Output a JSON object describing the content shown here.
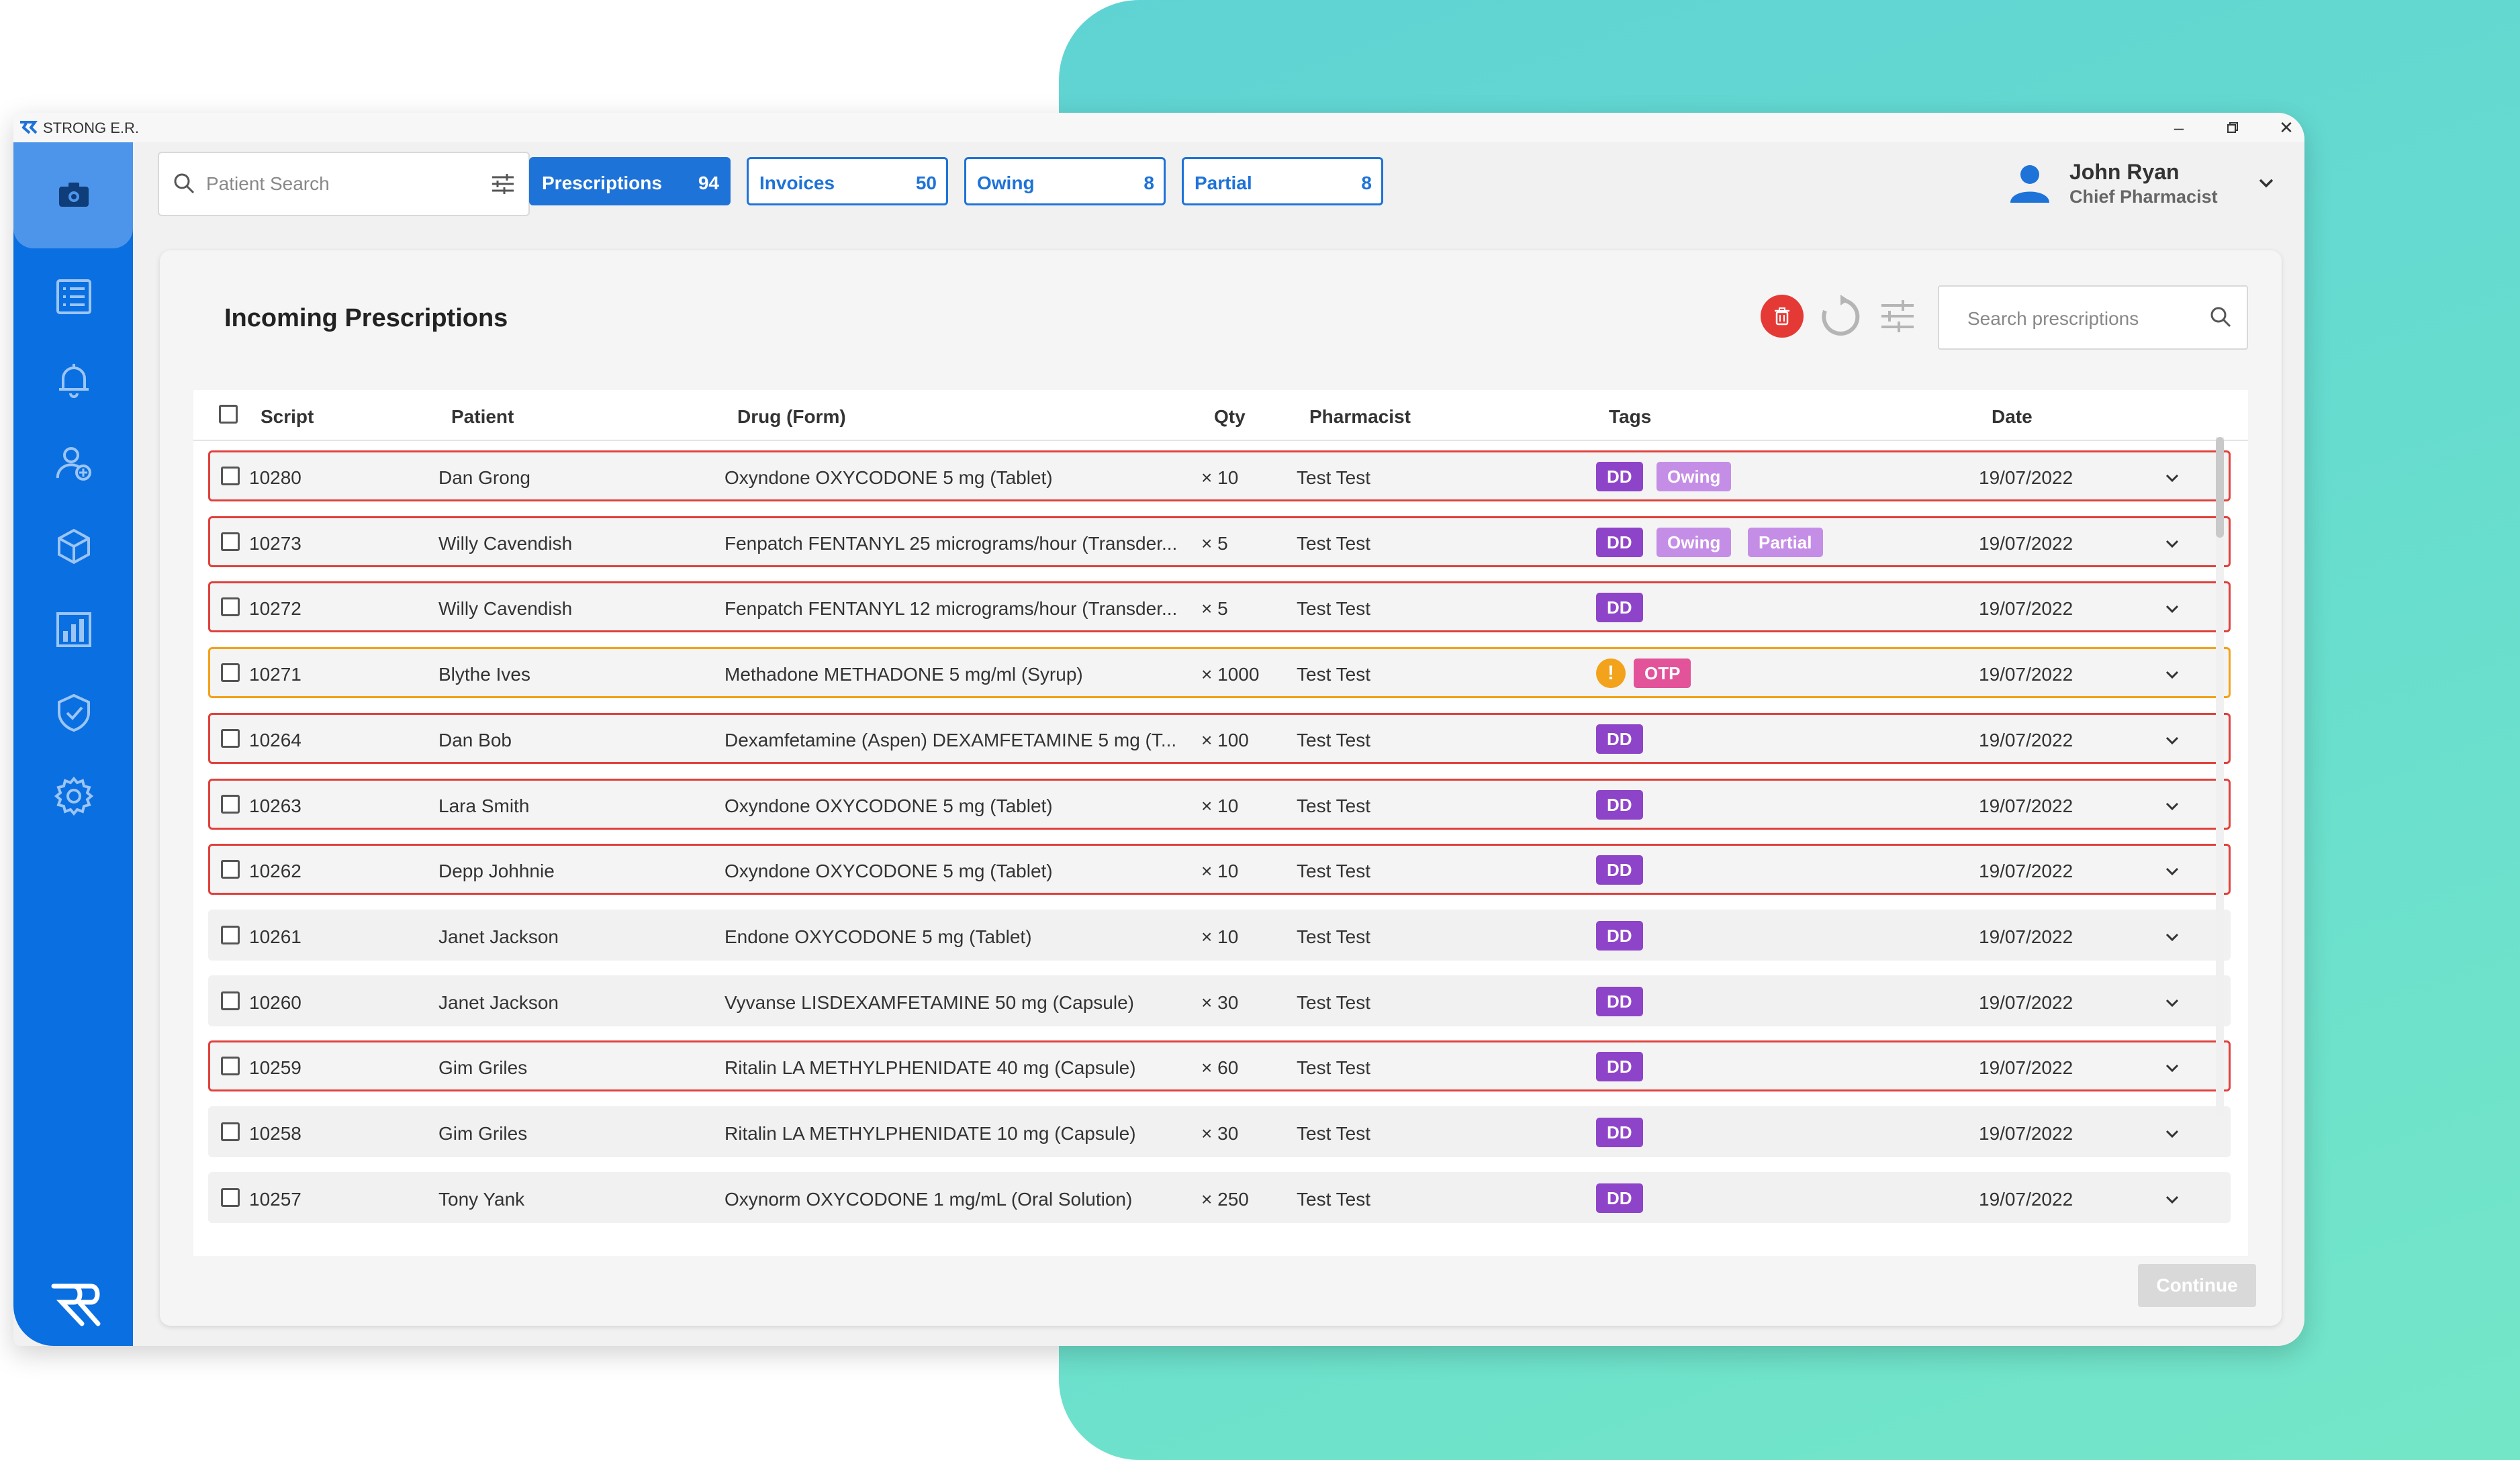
{
  "window": {
    "app_name": "STRONG E.R."
  },
  "sidebar": {
    "items": [
      {
        "icon": "camera-icon"
      },
      {
        "icon": "list-icon"
      },
      {
        "icon": "bell-icon"
      },
      {
        "icon": "user-add-icon"
      },
      {
        "icon": "box-icon"
      },
      {
        "icon": "bar-chart-icon"
      },
      {
        "icon": "shield-check-icon"
      },
      {
        "icon": "gear-icon"
      }
    ]
  },
  "topbar": {
    "search_placeholder": "Patient Search",
    "pills": [
      {
        "label": "Prescriptions",
        "count": "94",
        "active": true
      },
      {
        "label": "Invoices",
        "count": "50",
        "active": false
      },
      {
        "label": "Owing",
        "count": "8",
        "active": false
      },
      {
        "label": "Partial",
        "count": "8",
        "active": false
      }
    ],
    "user": {
      "name": "John Ryan",
      "role": "Chief Pharmacist"
    }
  },
  "panel": {
    "title": "Incoming Prescriptions",
    "search_placeholder": "Search prescriptions",
    "continue_label": "Continue"
  },
  "table": {
    "columns": [
      "Script",
      "Patient",
      "Drug (Form)",
      "Qty",
      "Pharmacist",
      "Tags",
      "Date"
    ],
    "rows": [
      {
        "script": "10280",
        "patient": "Dan Grong",
        "drug": "Oxyndone OXYCODONE 5 mg (Tablet)",
        "qty": "× 10",
        "pharmacist": "Test Test",
        "tags": [
          "DD",
          "Owing"
        ],
        "date": "19/07/2022",
        "highlight": "red"
      },
      {
        "script": "10273",
        "patient": "Willy Cavendish",
        "drug": "Fenpatch FENTANYL 25 micrograms/hour (Transder...",
        "qty": "× 5",
        "pharmacist": "Test Test",
        "tags": [
          "DD",
          "Owing",
          "Partial"
        ],
        "date": "19/07/2022",
        "highlight": "red"
      },
      {
        "script": "10272",
        "patient": "Willy Cavendish",
        "drug": "Fenpatch FENTANYL 12 micrograms/hour (Transder...",
        "qty": "× 5",
        "pharmacist": "Test Test",
        "tags": [
          "DD"
        ],
        "date": "19/07/2022",
        "highlight": "red"
      },
      {
        "script": "10271",
        "patient": "Blythe Ives",
        "drug": "Methadone METHADONE 5 mg/ml (Syrup)",
        "qty": "× 1000",
        "pharmacist": "Test Test",
        "tags": [
          "!",
          "OTP"
        ],
        "date": "19/07/2022",
        "highlight": "orange"
      },
      {
        "script": "10264",
        "patient": "Dan Bob",
        "drug": "Dexamfetamine (Aspen) DEXAMFETAMINE 5 mg (T...",
        "qty": "× 100",
        "pharmacist": "Test Test",
        "tags": [
          "DD"
        ],
        "date": "19/07/2022",
        "highlight": "red"
      },
      {
        "script": "10263",
        "patient": "Lara Smith",
        "drug": "Oxyndone OXYCODONE 5 mg (Tablet)",
        "qty": "× 10",
        "pharmacist": "Test Test",
        "tags": [
          "DD"
        ],
        "date": "19/07/2022",
        "highlight": "red"
      },
      {
        "script": "10262",
        "patient": "Depp Johhnie",
        "drug": "Oxyndone OXYCODONE 5 mg (Tablet)",
        "qty": "× 10",
        "pharmacist": "Test Test",
        "tags": [
          "DD"
        ],
        "date": "19/07/2022",
        "highlight": "red"
      },
      {
        "script": "10261",
        "patient": "Janet Jackson",
        "drug": "Endone OXYCODONE 5 mg (Tablet)",
        "qty": "× 10",
        "pharmacist": "Test Test",
        "tags": [
          "DD"
        ],
        "date": "19/07/2022",
        "highlight": "none"
      },
      {
        "script": "10260",
        "patient": "Janet Jackson",
        "drug": "Vyvanse LISDEXAMFETAMINE 50 mg (Capsule)",
        "qty": "× 30",
        "pharmacist": "Test Test",
        "tags": [
          "DD"
        ],
        "date": "19/07/2022",
        "highlight": "none"
      },
      {
        "script": "10259",
        "patient": "Gim Griles",
        "drug": "Ritalin LA METHYLPHENIDATE 40 mg (Capsule)",
        "qty": "× 60",
        "pharmacist": "Test Test",
        "tags": [
          "DD"
        ],
        "date": "19/07/2022",
        "highlight": "red"
      },
      {
        "script": "10258",
        "patient": "Gim Griles",
        "drug": "Ritalin LA METHYLPHENIDATE 10 mg (Capsule)",
        "qty": "× 30",
        "pharmacist": "Test Test",
        "tags": [
          "DD"
        ],
        "date": "19/07/2022",
        "highlight": "none"
      },
      {
        "script": "10257",
        "patient": "Tony Yank",
        "drug": "Oxynorm OXYCODONE 1 mg/mL (Oral Solution)",
        "qty": "× 250",
        "pharmacist": "Test Test",
        "tags": [
          "DD"
        ],
        "date": "19/07/2022",
        "highlight": "none"
      }
    ]
  },
  "colors": {
    "brand_blue": "#0a6fe0",
    "dd_tag": "#8e44c8",
    "owing_tag": "#c58ee6",
    "otp_tag": "#e2539a",
    "alert_red": "#e0413c",
    "alert_orange": "#f2a21b"
  }
}
